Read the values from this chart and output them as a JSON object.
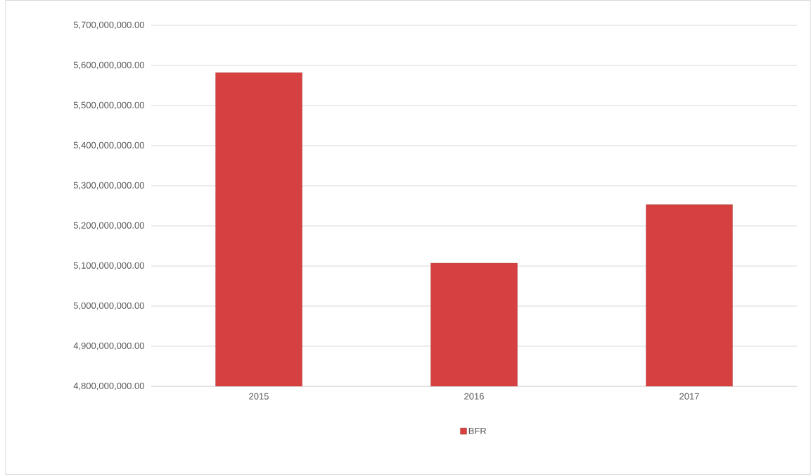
{
  "chart_data": {
    "type": "bar",
    "categories": [
      "2015",
      "2016",
      "2017"
    ],
    "series": [
      {
        "name": "BFR",
        "color": "#d64040",
        "values": [
          5582000000,
          5107000000,
          5253000000
        ]
      }
    ],
    "ylim": [
      4800000000,
      5700000000
    ],
    "yticks": [
      {
        "value": 4800000000,
        "label": "4,800,000,000.00"
      },
      {
        "value": 4900000000,
        "label": "4,900,000,000.00"
      },
      {
        "value": 5000000000,
        "label": "5,000,000,000.00"
      },
      {
        "value": 5100000000,
        "label": "5,100,000,000.00"
      },
      {
        "value": 5200000000,
        "label": "5,200,000,000.00"
      },
      {
        "value": 5300000000,
        "label": "5,300,000,000.00"
      },
      {
        "value": 5400000000,
        "label": "5,400,000,000.00"
      },
      {
        "value": 5500000000,
        "label": "5,500,000,000.00"
      },
      {
        "value": 5600000000,
        "label": "5,600,000,000.00"
      },
      {
        "value": 5700000000,
        "label": "5,700,000,000.00"
      }
    ],
    "grid": "y",
    "legend": "bottom"
  }
}
